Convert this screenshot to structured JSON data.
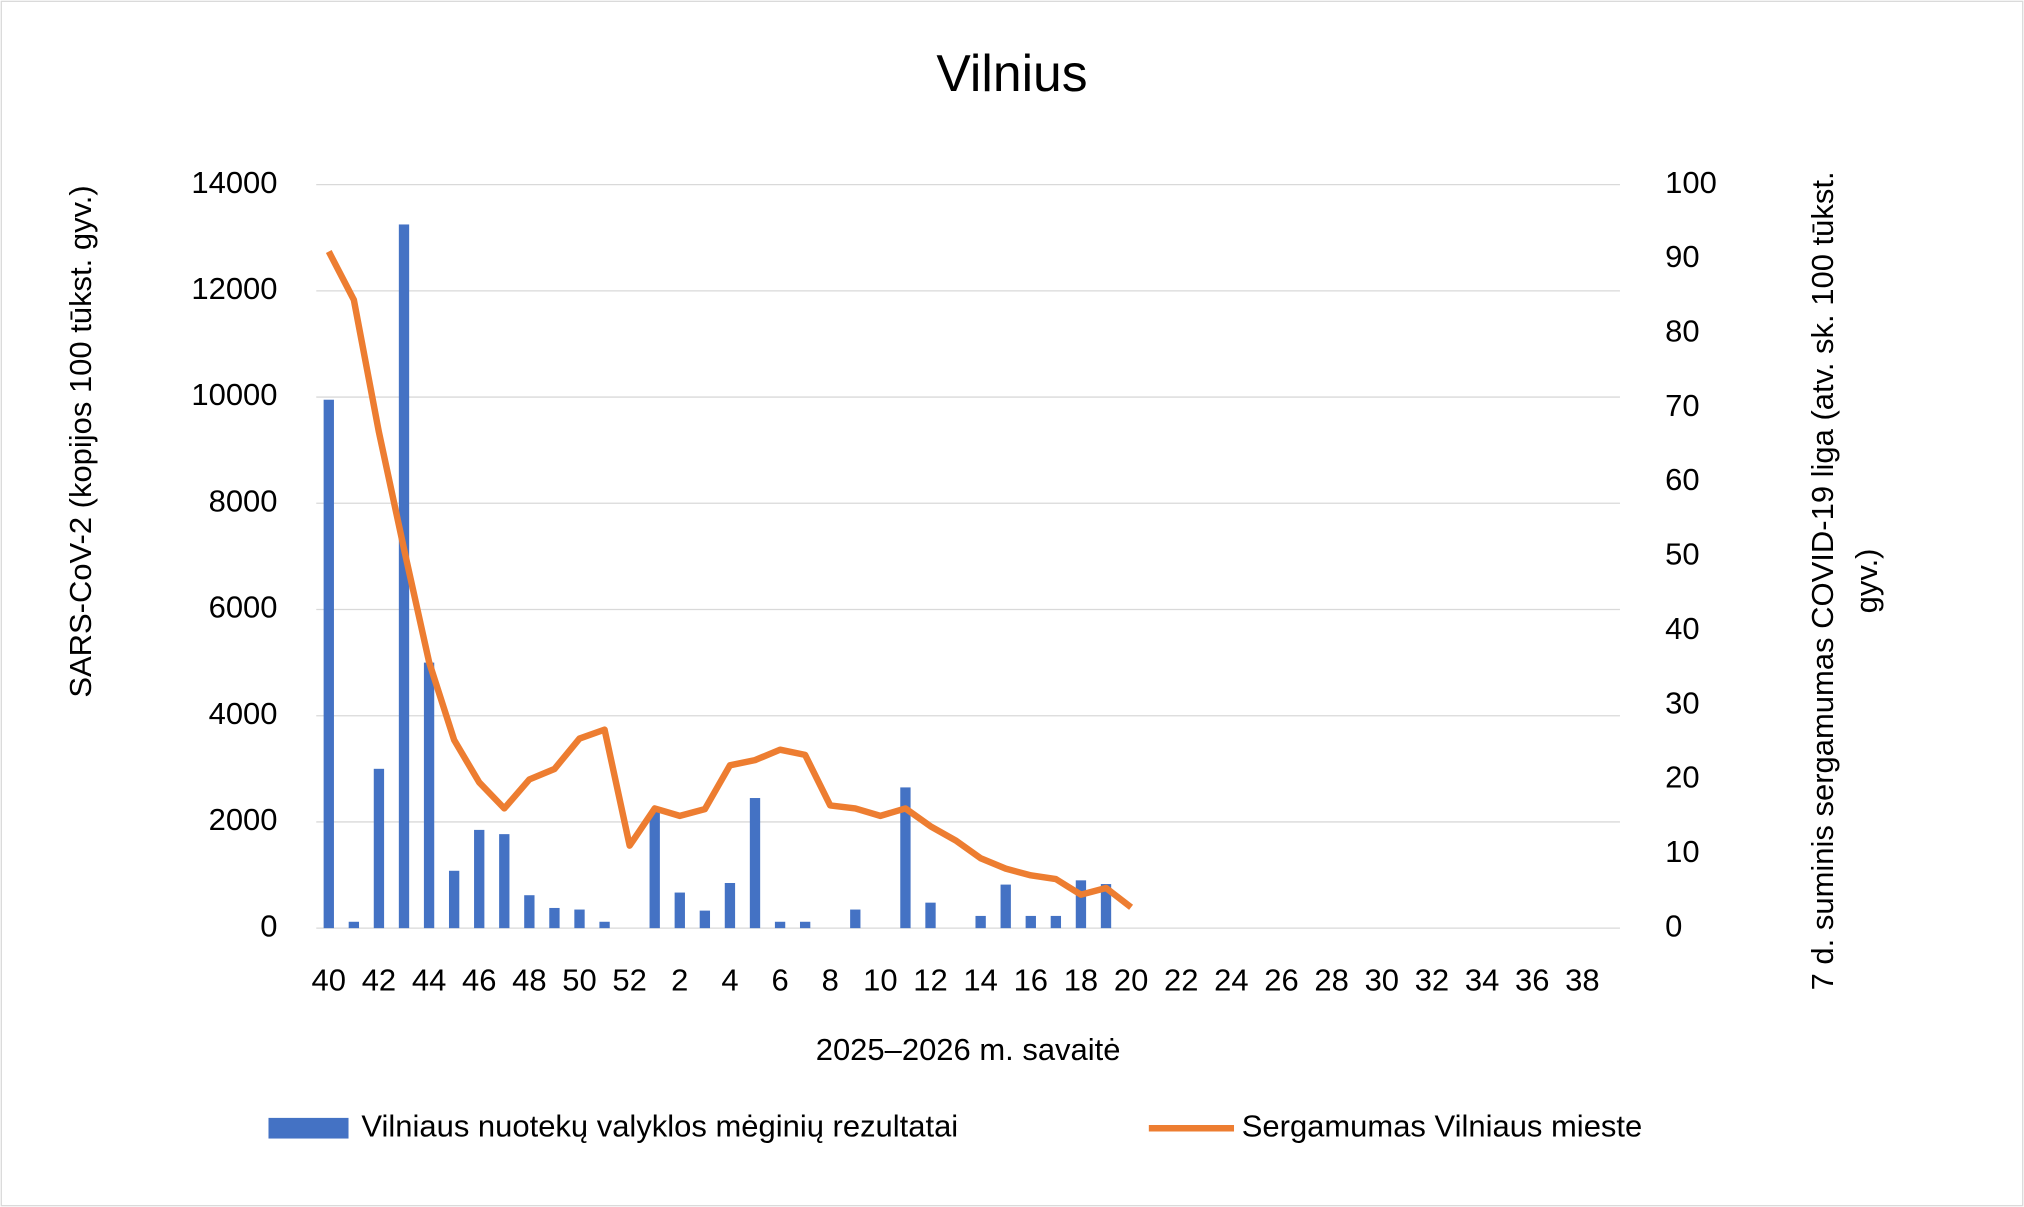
{
  "chart_data": {
    "type": "bar-line",
    "title": "Vilnius",
    "x_label": "2025–2026 m. savaitė",
    "y_label": "SARS-CoV-2  (kopijos 100 tūkst. gyv.)",
    "y2_label": "7 d. suminis sergamumas COVID-19 liga (atv. sk. 100 tūkst. gyv.)",
    "categories": [
      "40",
      null,
      "42",
      null,
      "44",
      null,
      "46",
      null,
      "48",
      null,
      "50",
      null,
      "52",
      null,
      "2",
      null,
      "4",
      null,
      "6",
      null,
      "8",
      null,
      "10",
      null,
      "12",
      null,
      "14",
      null,
      "16",
      null,
      "18",
      null,
      "20",
      null,
      "22",
      null,
      "24",
      null,
      "26",
      null,
      "28",
      null,
      "30",
      null,
      "32",
      null,
      "34",
      null,
      "36",
      null,
      "38",
      null
    ],
    "series": [
      {
        "name": "Vilniaus nuotekų valyklos mėginių rezultatai",
        "type": "bar",
        "color": "#4472c4",
        "values": [
          9950,
          120,
          3000,
          13250,
          5000,
          1080,
          1850,
          1770,
          620,
          380,
          350,
          120,
          null,
          2200,
          670,
          330,
          850,
          2450,
          120,
          120,
          null,
          350,
          null,
          2650,
          480,
          null,
          230,
          820,
          230,
          230,
          900,
          830,
          null,
          null,
          null,
          null,
          null,
          null,
          null,
          null,
          null,
          null,
          null,
          null,
          null,
          null,
          null,
          null,
          null,
          null,
          null,
          null
        ]
      },
      {
        "name": "Sergamumas Vilniaus mieste",
        "type": "line",
        "axis": "y2",
        "color": "#ed7d31",
        "values": [
          91,
          84.5,
          66.7,
          51,
          35.8,
          25.3,
          19.6,
          16.1,
          20,
          21.4,
          25.5,
          26.7,
          11.1,
          16.1,
          15.1,
          16,
          21.9,
          22.6,
          24,
          23.3,
          16.5,
          16.1,
          15.1,
          16.1,
          13.7,
          11.8,
          9.4,
          8,
          7.1,
          6.6,
          4.5,
          5.4,
          2.8,
          null,
          null,
          null,
          null,
          null,
          null,
          null,
          null,
          null,
          null,
          null,
          null,
          null,
          null,
          null,
          null,
          null,
          null,
          null
        ]
      }
    ],
    "ylim": [
      0,
      14000
    ],
    "yticks": [
      0,
      2000,
      4000,
      6000,
      8000,
      10000,
      12000,
      14000
    ],
    "y2lim": [
      0,
      100
    ],
    "y2ticks": [
      0,
      10,
      20,
      30,
      40,
      50,
      60,
      70,
      80,
      90,
      100
    ],
    "grid": true,
    "legend": "bottom"
  }
}
